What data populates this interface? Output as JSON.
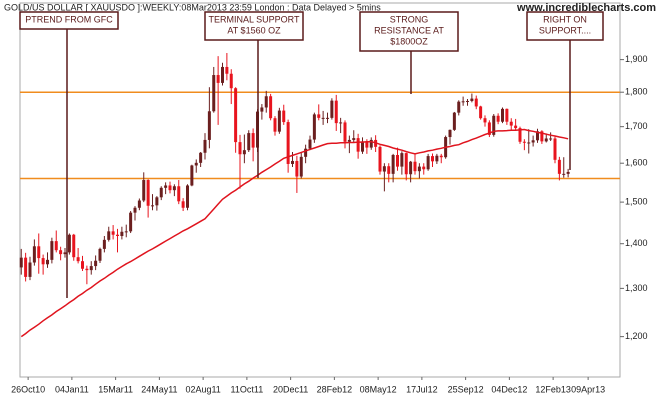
{
  "chart_data": {
    "type": "candlestick",
    "title": "GOLD/US DOLLAR [ XAUUSDO ]:WEEKLY:08Mar2013 23:59 London : Data Delayed > 5mins",
    "source": "www.incrediblecharts.com",
    "source_color": "#c000c0",
    "ylog": true,
    "ylim": [
      1126,
      2063
    ],
    "yticks": [
      {
        "value": 1200,
        "label": "1,200"
      },
      {
        "value": 1300,
        "label": "1,300"
      },
      {
        "value": 1400,
        "label": "1,400"
      },
      {
        "value": 1500,
        "label": "1,500"
      },
      {
        "value": 1600,
        "label": "1,600"
      },
      {
        "value": 1700,
        "label": "1,700"
      },
      {
        "value": 1800,
        "label": "1,800"
      },
      {
        "value": 1900,
        "label": "1,900"
      }
    ],
    "xlim": [
      "2010-10-13",
      "2013-05-30"
    ],
    "xticks": [
      {
        "value": "2010-10-26",
        "label": "26Oct10"
      },
      {
        "value": "2011-01-04",
        "label": "04Jan11"
      },
      {
        "value": "2011-03-15",
        "label": "15Mar11"
      },
      {
        "value": "2011-05-24",
        "label": "24May11"
      },
      {
        "value": "2011-08-02",
        "label": "02Aug11"
      },
      {
        "value": "2011-10-11",
        "label": "11Oct11"
      },
      {
        "value": "2011-12-20",
        "label": "20Dec11"
      },
      {
        "value": "2012-02-28",
        "label": "28Feb12"
      },
      {
        "value": "2012-05-08",
        "label": "08May12"
      },
      {
        "value": "2012-07-17",
        "label": "17Jul12"
      },
      {
        "value": "2012-09-25",
        "label": "25Sep12"
      },
      {
        "value": "2012-12-04",
        "label": "04Dec12"
      },
      {
        "value": "2013-02-12",
        "label": "12Feb13"
      },
      {
        "value": "2013-04-09",
        "label": "09Apr13"
      }
    ],
    "x": [
      "2010-10-15",
      "2010-10-22",
      "2010-10-29",
      "2010-11-05",
      "2010-11-12",
      "2010-11-19",
      "2010-11-26",
      "2010-12-03",
      "2010-12-10",
      "2010-12-17",
      "2010-12-24",
      "2010-12-31",
      "2011-01-07",
      "2011-01-14",
      "2011-01-21",
      "2011-01-28",
      "2011-02-04",
      "2011-02-11",
      "2011-02-18",
      "2011-02-25",
      "2011-03-04",
      "2011-03-11",
      "2011-03-18",
      "2011-03-25",
      "2011-04-01",
      "2011-04-08",
      "2011-04-15",
      "2011-04-22",
      "2011-04-29",
      "2011-05-06",
      "2011-05-13",
      "2011-05-20",
      "2011-05-27",
      "2011-06-03",
      "2011-06-10",
      "2011-06-17",
      "2011-06-24",
      "2011-07-01",
      "2011-07-08",
      "2011-07-15",
      "2011-07-22",
      "2011-07-29",
      "2011-08-05",
      "2011-08-12",
      "2011-08-19",
      "2011-08-26",
      "2011-09-02",
      "2011-09-09",
      "2011-09-16",
      "2011-09-23",
      "2011-09-30",
      "2011-10-07",
      "2011-10-14",
      "2011-10-21",
      "2011-10-28",
      "2011-11-04",
      "2011-11-11",
      "2011-11-18",
      "2011-11-25",
      "2011-12-02",
      "2011-12-09",
      "2011-12-16",
      "2011-12-23",
      "2011-12-30",
      "2012-01-06",
      "2012-01-13",
      "2012-01-20",
      "2012-01-27",
      "2012-02-03",
      "2012-02-10",
      "2012-02-17",
      "2012-02-24",
      "2012-03-02",
      "2012-03-09",
      "2012-03-16",
      "2012-03-23",
      "2012-03-30",
      "2012-04-06",
      "2012-04-13",
      "2012-04-20",
      "2012-04-27",
      "2012-05-04",
      "2012-05-11",
      "2012-05-18",
      "2012-05-25",
      "2012-06-01",
      "2012-06-08",
      "2012-06-15",
      "2012-06-22",
      "2012-06-29",
      "2012-07-06",
      "2012-07-13",
      "2012-07-20",
      "2012-07-27",
      "2012-08-03",
      "2012-08-10",
      "2012-08-17",
      "2012-08-24",
      "2012-08-31",
      "2012-09-07",
      "2012-09-14",
      "2012-09-21",
      "2012-09-28",
      "2012-10-05",
      "2012-10-12",
      "2012-10-19",
      "2012-10-26",
      "2012-11-02",
      "2012-11-09",
      "2012-11-16",
      "2012-11-23",
      "2012-11-30",
      "2012-12-07",
      "2012-12-14",
      "2012-12-21",
      "2012-12-28",
      "2013-01-04",
      "2013-01-11",
      "2013-01-18",
      "2013-01-25",
      "2013-02-01",
      "2013-02-08",
      "2013-02-15",
      "2013-02-22",
      "2013-03-01",
      "2013-03-08"
    ],
    "candles": {
      "up_color": "#6b1f1f",
      "down_color": "#e8141e",
      "open": [
        1346,
        1368,
        1325,
        1357,
        1394,
        1367,
        1353,
        1363,
        1406,
        1385,
        1376,
        1380,
        1421,
        1369,
        1360,
        1343,
        1340,
        1349,
        1361,
        1388,
        1409,
        1429,
        1421,
        1418,
        1428,
        1429,
        1474,
        1486,
        1504,
        1556,
        1491,
        1492,
        1512,
        1536,
        1542,
        1530,
        1540,
        1502,
        1486,
        1542,
        1594,
        1601,
        1628,
        1663,
        1744,
        1852,
        1828,
        1877,
        1856,
        1812,
        1657,
        1624,
        1635,
        1682,
        1642,
        1743,
        1755,
        1788,
        1724,
        1686,
        1746,
        1713,
        1598,
        1606,
        1565,
        1617,
        1639,
        1664,
        1735,
        1725,
        1725,
        1725,
        1775,
        1710,
        1712,
        1658,
        1663,
        1668,
        1631,
        1659,
        1642,
        1663,
        1644,
        1578,
        1592,
        1572,
        1622,
        1591,
        1627,
        1571,
        1604,
        1579,
        1591,
        1584,
        1619,
        1605,
        1620,
        1616,
        1671,
        1691,
        1740,
        1772,
        1773,
        1774,
        1781,
        1758,
        1724,
        1712,
        1677,
        1731,
        1714,
        1751,
        1714,
        1703,
        1696,
        1658,
        1656,
        1656,
        1662,
        1687,
        1659,
        1667,
        1667,
        1609,
        1572,
        1572
      ],
      "high": [
        1388,
        1379,
        1370,
        1410,
        1424,
        1375,
        1380,
        1414,
        1431,
        1393,
        1390,
        1424,
        1423,
        1390,
        1372,
        1350,
        1360,
        1373,
        1391,
        1418,
        1440,
        1444,
        1435,
        1440,
        1445,
        1478,
        1490,
        1509,
        1576,
        1558,
        1520,
        1515,
        1540,
        1550,
        1552,
        1545,
        1556,
        1510,
        1545,
        1596,
        1610,
        1630,
        1682,
        1815,
        1877,
        1911,
        1890,
        1921,
        1870,
        1815,
        1677,
        1678,
        1690,
        1695,
        1750,
        1765,
        1804,
        1795,
        1730,
        1754,
        1763,
        1720,
        1630,
        1620,
        1630,
        1650,
        1675,
        1740,
        1764,
        1745,
        1740,
        1782,
        1792,
        1725,
        1718,
        1675,
        1690,
        1680,
        1670,
        1665,
        1670,
        1676,
        1648,
        1600,
        1600,
        1625,
        1642,
        1632,
        1628,
        1606,
        1625,
        1600,
        1600,
        1625,
        1626,
        1625,
        1625,
        1675,
        1692,
        1742,
        1776,
        1787,
        1780,
        1796,
        1790,
        1760,
        1732,
        1718,
        1736,
        1738,
        1755,
        1752,
        1724,
        1722,
        1700,
        1665,
        1693,
        1675,
        1694,
        1690,
        1681,
        1684,
        1672,
        1617,
        1616,
        1585
      ],
      "low": [
        1330,
        1315,
        1318,
        1350,
        1332,
        1330,
        1345,
        1355,
        1380,
        1362,
        1368,
        1375,
        1361,
        1355,
        1338,
        1309,
        1330,
        1340,
        1356,
        1380,
        1405,
        1410,
        1380,
        1410,
        1415,
        1425,
        1455,
        1480,
        1500,
        1462,
        1480,
        1479,
        1505,
        1520,
        1522,
        1515,
        1495,
        1478,
        1480,
        1540,
        1575,
        1590,
        1610,
        1640,
        1740,
        1705,
        1820,
        1836,
        1765,
        1628,
        1534,
        1600,
        1630,
        1605,
        1630,
        1720,
        1740,
        1718,
        1675,
        1680,
        1705,
        1575,
        1590,
        1523,
        1560,
        1600,
        1635,
        1655,
        1718,
        1705,
        1710,
        1720,
        1688,
        1682,
        1640,
        1627,
        1655,
        1612,
        1625,
        1625,
        1636,
        1630,
        1570,
        1527,
        1550,
        1550,
        1580,
        1570,
        1555,
        1550,
        1570,
        1560,
        1570,
        1580,
        1590,
        1598,
        1600,
        1612,
        1650,
        1688,
        1732,
        1760,
        1760,
        1770,
        1750,
        1720,
        1700,
        1671,
        1672,
        1707,
        1710,
        1705,
        1690,
        1690,
        1652,
        1635,
        1626,
        1645,
        1655,
        1652,
        1656,
        1660,
        1600,
        1555,
        1562,
        1563
      ],
      "close": [
        1368,
        1325,
        1357,
        1394,
        1367,
        1353,
        1363,
        1406,
        1385,
        1376,
        1380,
        1421,
        1369,
        1360,
        1343,
        1340,
        1349,
        1361,
        1388,
        1409,
        1429,
        1421,
        1418,
        1428,
        1429,
        1474,
        1486,
        1504,
        1556,
        1491,
        1492,
        1512,
        1536,
        1542,
        1530,
        1540,
        1502,
        1486,
        1542,
        1594,
        1601,
        1628,
        1663,
        1744,
        1852,
        1828,
        1877,
        1856,
        1812,
        1657,
        1624,
        1635,
        1682,
        1642,
        1743,
        1755,
        1788,
        1724,
        1686,
        1746,
        1713,
        1598,
        1606,
        1565,
        1617,
        1639,
        1664,
        1735,
        1725,
        1725,
        1725,
        1775,
        1710,
        1712,
        1658,
        1663,
        1668,
        1631,
        1659,
        1642,
        1663,
        1644,
        1578,
        1592,
        1572,
        1622,
        1591,
        1627,
        1571,
        1604,
        1579,
        1591,
        1584,
        1619,
        1605,
        1620,
        1616,
        1671,
        1691,
        1740,
        1772,
        1773,
        1774,
        1781,
        1758,
        1724,
        1712,
        1677,
        1731,
        1714,
        1751,
        1714,
        1703,
        1696,
        1658,
        1656,
        1656,
        1662,
        1687,
        1659,
        1667,
        1667,
        1609,
        1572,
        1572,
        1577
      ]
    },
    "moving_average": {
      "color": "#e0141e",
      "values": [
        1200,
        1206,
        1213,
        1219,
        1225,
        1232,
        1238,
        1244,
        1251,
        1257,
        1263,
        1270,
        1276,
        1283,
        1289,
        1296,
        1302,
        1309,
        1316,
        1322,
        1329,
        1335,
        1342,
        1348,
        1354,
        1359,
        1365,
        1371,
        1377,
        1383,
        1388,
        1394,
        1400,
        1406,
        1412,
        1418,
        1424,
        1430,
        1435,
        1441,
        1447,
        1453,
        1459,
        1471,
        1483,
        1495,
        1507,
        1515,
        1523,
        1530,
        1538,
        1546,
        1553,
        1561,
        1568,
        1576,
        1583,
        1590,
        1598,
        1605,
        1613,
        1617,
        1621,
        1625,
        1629,
        1633,
        1637,
        1641,
        1645,
        1649,
        1653,
        1654,
        1654,
        1655,
        1655,
        1656,
        1656,
        1657,
        1657,
        1658,
        1658,
        1655,
        1651,
        1648,
        1645,
        1641,
        1638,
        1635,
        1631,
        1628,
        1625,
        1628,
        1630,
        1633,
        1635,
        1638,
        1640,
        1643,
        1645,
        1648,
        1650,
        1655,
        1659,
        1664,
        1668,
        1673,
        1678,
        1682,
        1687,
        1688,
        1688,
        1689,
        1690,
        1690,
        1691,
        1692,
        1689,
        1687,
        1684,
        1682,
        1679,
        1676,
        1674,
        1671,
        1669,
        1666
      ]
    },
    "hlines": [
      {
        "value": 1800,
        "color": "#f08c1e"
      },
      {
        "value": 1560,
        "color": "#f08c1e"
      }
    ],
    "annotations": [
      {
        "text": [
          "PTREND FROM GFC"
        ]
      },
      {
        "text": [
          "TERMINAL SUPPORT",
          "AT $1560 OZ"
        ]
      },
      {
        "text": [
          "STRONG",
          "RESISTANCE AT",
          "$1800OZ"
        ]
      },
      {
        "text": [
          "RIGHT ON",
          "SUPPORT...."
        ]
      }
    ]
  }
}
